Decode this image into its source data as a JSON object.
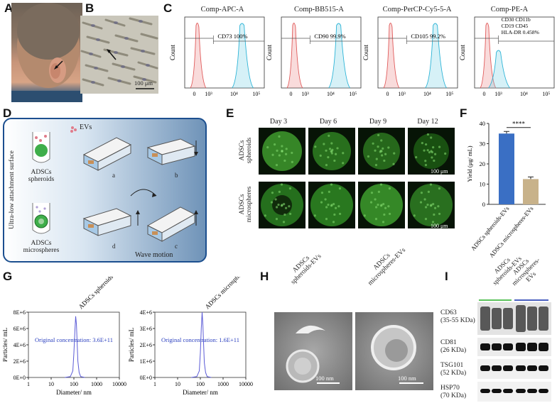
{
  "panels": {
    "A": "A",
    "B": "B",
    "C": "C",
    "D": "D",
    "E": "E",
    "F": "F",
    "G": "G",
    "H": "H",
    "I": "I"
  },
  "panelB": {
    "scale": "100 μm"
  },
  "flow": [
    {
      "title": "Comp-APC-A",
      "marker": "CD73 100%",
      "xticks": [
        "0",
        "10³",
        "10⁴",
        "10⁵"
      ]
    },
    {
      "title": "Comp-BB515-A",
      "marker": "CD90 99.9%",
      "xticks": [
        "0",
        "10³",
        "10⁴",
        "10⁵"
      ]
    },
    {
      "title": "Comp-PerCP-Cy5-5-A",
      "marker": "CD105 99.2%",
      "xticks": [
        "0",
        "10³",
        "10⁴",
        "10⁵"
      ]
    },
    {
      "title": "Comp-PE-A",
      "marker_lines": [
        "CD30 CD11b",
        "CD19  CD45",
        "HLA-DR 0.458%"
      ],
      "xticks": [
        "0",
        "10³",
        "10⁴",
        "10⁵"
      ]
    }
  ],
  "flow_ylabel": "Count",
  "diagram": {
    "evs": "EVs",
    "side": "Ultra-low attachment surface",
    "spheroids": "ADSCs spheroids",
    "microspheres": "ADSCs microspheres",
    "steps": [
      "a",
      "b",
      "c",
      "d"
    ],
    "wave": "Wave motion"
  },
  "confocal": {
    "days": [
      "Day 3",
      "Day 6",
      "Day 9",
      "Day 12"
    ],
    "rows": [
      "ADSCs spheroids",
      "ADSCs microspheres"
    ],
    "scale": "100 μm"
  },
  "chart_data": [
    {
      "type": "bar",
      "panel": "F",
      "categories": [
        "ADSCs spheroids-EVs",
        "ADSCs microspheres-EVs"
      ],
      "values": [
        35,
        12.5
      ],
      "ylabel": "Yield (μg/ mL)",
      "ylim": [
        0,
        40
      ],
      "yticks": [
        "0",
        "10",
        "20",
        "30",
        "40"
      ],
      "significance": "****",
      "colors": [
        "#3a6fc4",
        "#c8b28a"
      ]
    },
    {
      "type": "line",
      "panel": "G-left",
      "title": "ADSCs spheroids-EVs",
      "xlabel": "Diameter/ nm",
      "ylabel": "Particles/ mL",
      "xscale": "log",
      "xticks": [
        "1",
        "10",
        "100",
        "1000",
        "10000"
      ],
      "yticks": [
        "0E+0",
        "2E+6",
        "4E+6",
        "6E+6",
        "8E+6"
      ],
      "ylim": [
        0,
        8000000
      ],
      "annotation": "Original concentration: 3.6E+11",
      "x": [
        40,
        70,
        90,
        100,
        110,
        120,
        130,
        140,
        150,
        170,
        200,
        300
      ],
      "y": [
        0,
        100000,
        800000,
        3000000,
        5500000,
        7500000,
        6500000,
        4000000,
        2000000,
        600000,
        100000,
        0
      ]
    },
    {
      "type": "line",
      "panel": "G-right",
      "title": "ADSCs microspheres-EVs",
      "xlabel": "Diameter/ nm",
      "ylabel": "Particles/ mL",
      "xscale": "log",
      "xticks": [
        "1",
        "10",
        "100",
        "1000",
        "10000"
      ],
      "yticks": [
        "0E+0",
        "1E+6",
        "2E+6",
        "3E+6",
        "4E+6"
      ],
      "ylim": [
        0,
        4000000
      ],
      "annotation": "Original concentration: 1.6E+11",
      "x": [
        40,
        70,
        90,
        100,
        110,
        120,
        130,
        140,
        150,
        170,
        200,
        300
      ],
      "y": [
        0,
        50000,
        400000,
        1500000,
        3000000,
        4000000,
        3200000,
        1900000,
        900000,
        300000,
        50000,
        0
      ]
    }
  ],
  "tem": {
    "labels": [
      "ADSCs spheroids-EVs",
      "ADSCs microspheres-EVs"
    ],
    "scale": "100 nm"
  },
  "blot": {
    "groups": [
      "ADSCs spheroids-EVs",
      "ADSCs microspheres-EVs"
    ],
    "rows": [
      {
        "name": "CD63",
        "size": "(35-55 KDa)"
      },
      {
        "name": "CD81",
        "size": "(26 KDa)"
      },
      {
        "name": "TSG101",
        "size": "(52 KDa)"
      },
      {
        "name": "HSP70",
        "size": "(70 KDa)"
      }
    ],
    "group_colors": [
      "#5cc35c",
      "#4a5fc0"
    ]
  }
}
